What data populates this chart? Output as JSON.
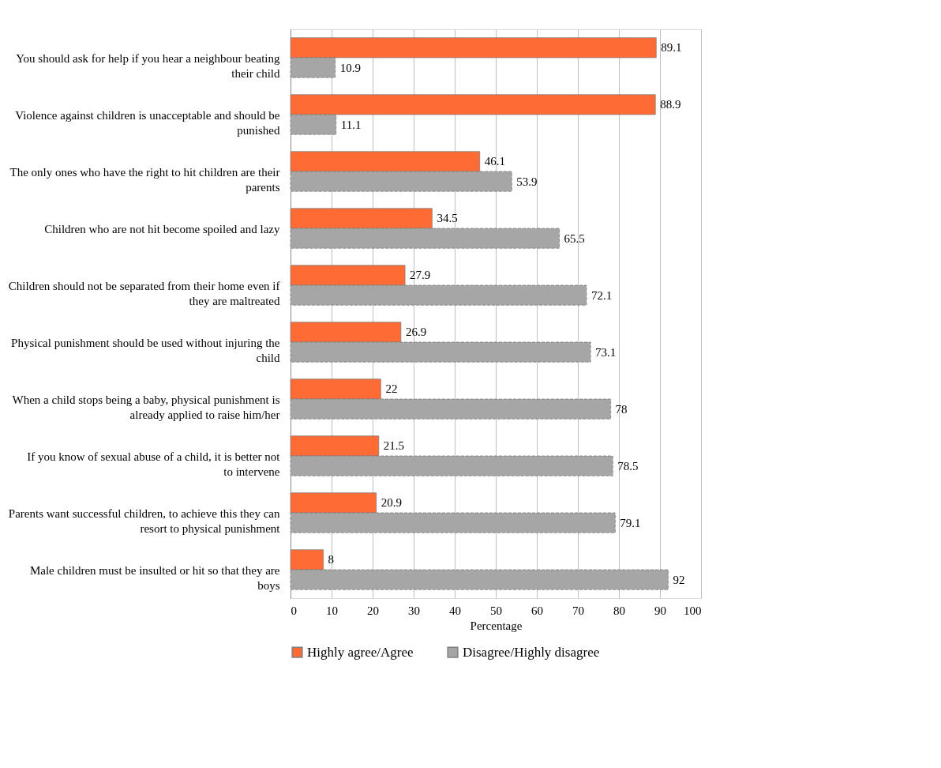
{
  "chart_data": {
    "type": "bar",
    "orientation": "horizontal",
    "xlabel": "Percentage",
    "categories": [
      "You should ask for help if you hear a neighbour beating their child",
      "Violence against children is unacceptable and should be punished",
      "The only ones who have the right to hit children are their parents",
      "Children who are not hit become spoiled and lazy",
      "Children should not be separated from their home even if they are maltreated",
      "Physical punishment should be used without injuring the child",
      "When a child stops being a baby, physical punishment is already applied to raise him/her",
      "If you know of sexual abuse of a child, it is better not to intervene",
      "Parents want successful children, to achieve this they can resort to physical punishment",
      "Male children must be insulted or hit so that they are boys"
    ],
    "series": [
      {
        "name": "Highly agree/Agree",
        "color": "#ff6b35",
        "values": [
          89.1,
          88.9,
          46.1,
          34.5,
          27.9,
          26.9,
          22,
          21.5,
          20.9,
          8
        ]
      },
      {
        "name": "Disagree/Highly disagree",
        "color": "#a6a6a6",
        "values": [
          10.9,
          11.1,
          53.9,
          65.5,
          72.1,
          73.1,
          78,
          78.5,
          79.1,
          92
        ]
      }
    ],
    "xlim": [
      0,
      100
    ],
    "xticks": [
      0,
      10,
      20,
      30,
      40,
      50,
      60,
      70,
      80,
      90,
      100
    ],
    "grid": "x",
    "legend": "bottom",
    "data_labels": true
  }
}
